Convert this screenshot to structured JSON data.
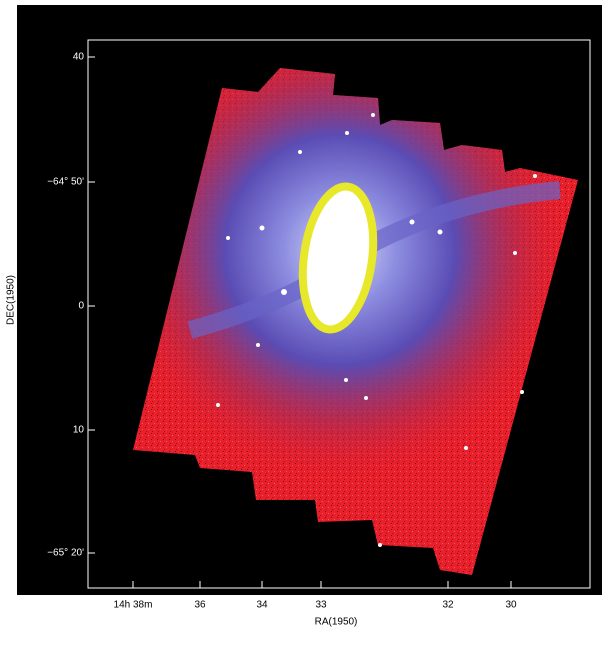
{
  "axes": {
    "x_title": "RA(1950)",
    "y_title": "DEC(1950)",
    "x_labels": [
      "14h 38m",
      "36",
      "34",
      "33",
      "32",
      "30"
    ],
    "y_labels": [
      "40",
      "−64° 50'",
      "0",
      "10",
      "−65° 20'"
    ]
  }
}
